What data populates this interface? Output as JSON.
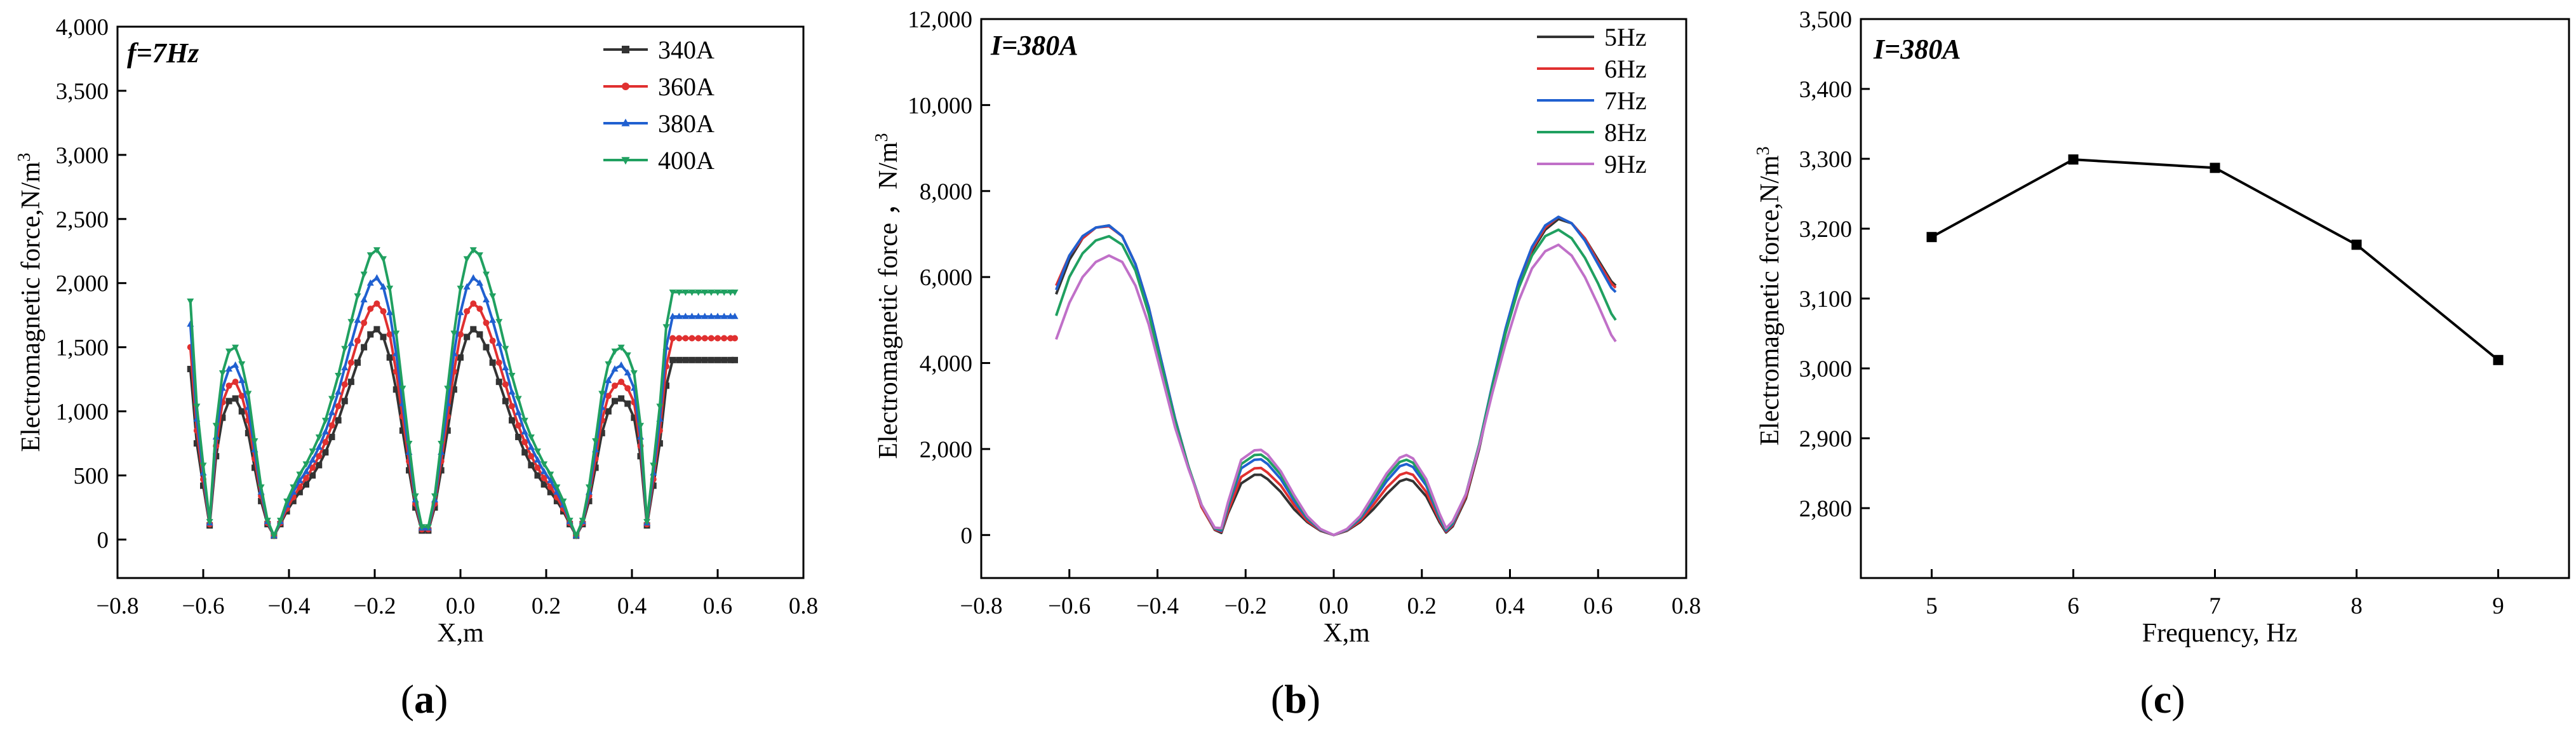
{
  "chart_data": [
    {
      "type": "line",
      "panel": "a",
      "caption": {
        "prefix": "(",
        "letter": "a",
        "suffix": ")"
      },
      "annotation": {
        "var": "f",
        "rest": "=7Hz"
      },
      "xlabel": "X,m",
      "ylabel": "Electromagnetic force,N/m³",
      "xlim": [
        -0.8,
        0.8
      ],
      "ylim": [
        -300,
        4000
      ],
      "xticks": [
        -0.8,
        -0.6,
        -0.4,
        -0.2,
        0.0,
        0.2,
        0.4,
        0.6,
        0.8
      ],
      "xtick_labels": [
        "−0.8",
        "−0.6",
        "−0.4",
        "−0.2",
        "0.0",
        "0.2",
        "0.4",
        "0.6",
        "0.8"
      ],
      "yticks": [
        0,
        500,
        1000,
        1500,
        2000,
        2500,
        3000,
        3500,
        4000
      ],
      "ytick_labels": [
        "0",
        "500",
        "1,000",
        "1,500",
        "2,000",
        "2,500",
        "3,000",
        "3,500",
        "4,000"
      ],
      "legend_position": "top-right",
      "x": [
        -0.63,
        -0.615,
        -0.6,
        -0.585,
        -0.57,
        -0.555,
        -0.54,
        -0.525,
        -0.51,
        -0.495,
        -0.48,
        -0.465,
        -0.45,
        -0.435,
        -0.42,
        -0.405,
        -0.39,
        -0.375,
        -0.36,
        -0.345,
        -0.33,
        -0.315,
        -0.3,
        -0.285,
        -0.27,
        -0.255,
        -0.24,
        -0.225,
        -0.21,
        -0.195,
        -0.18,
        -0.165,
        -0.15,
        -0.135,
        -0.12,
        -0.105,
        -0.09,
        -0.075,
        -0.06,
        -0.045,
        -0.03,
        -0.015,
        0.0,
        0.015,
        0.03,
        0.045,
        0.06,
        0.075,
        0.09,
        0.105,
        0.12,
        0.135,
        0.15,
        0.165,
        0.18,
        0.195,
        0.21,
        0.225,
        0.24,
        0.255,
        0.27,
        0.285,
        0.3,
        0.315,
        0.33,
        0.345,
        0.36,
        0.375,
        0.39,
        0.405,
        0.42,
        0.435,
        0.45,
        0.465,
        0.48,
        0.495,
        0.51,
        0.525,
        0.54,
        0.555,
        0.57,
        0.585,
        0.6,
        0.615,
        0.63,
        0.64
      ],
      "series": [
        {
          "name": "340A",
          "color": "#333333",
          "marker": "square",
          "values": [
            1330,
            750,
            420,
            110,
            650,
            950,
            1080,
            1100,
            1000,
            830,
            560,
            300,
            120,
            30,
            120,
            220,
            300,
            370,
            430,
            500,
            580,
            680,
            800,
            930,
            1080,
            1230,
            1380,
            1500,
            1600,
            1640,
            1580,
            1420,
            1170,
            850,
            540,
            250,
            70,
            70,
            250,
            540,
            850,
            1170,
            1420,
            1580,
            1640,
            1600,
            1500,
            1380,
            1230,
            1080,
            930,
            800,
            680,
            580,
            500,
            430,
            370,
            300,
            220,
            120,
            30,
            120,
            300,
            560,
            830,
            1000,
            1080,
            1100,
            1060,
            950,
            650,
            110,
            420,
            750,
            1200,
            1400,
            1400,
            1400,
            1400,
            1400,
            1400,
            1400,
            1400,
            1400,
            1400,
            1400
          ]
        },
        {
          "name": "360A",
          "color": "#e03030",
          "marker": "circle",
          "values": [
            1500,
            850,
            470,
            120,
            730,
            1070,
            1200,
            1230,
            1120,
            930,
            630,
            340,
            130,
            30,
            130,
            240,
            330,
            410,
            480,
            560,
            650,
            760,
            890,
            1040,
            1210,
            1380,
            1550,
            1690,
            1800,
            1840,
            1780,
            1600,
            1310,
            960,
            610,
            280,
            80,
            80,
            280,
            610,
            960,
            1310,
            1600,
            1780,
            1840,
            1800,
            1690,
            1550,
            1380,
            1210,
            1040,
            890,
            760,
            650,
            560,
            480,
            410,
            330,
            240,
            130,
            30,
            130,
            340,
            630,
            930,
            1120,
            1200,
            1230,
            1180,
            1070,
            730,
            120,
            470,
            850,
            1350,
            1570,
            1570,
            1570,
            1570,
            1570,
            1570,
            1570,
            1570,
            1570,
            1570,
            1570
          ]
        },
        {
          "name": "380A",
          "color": "#2060d0",
          "marker": "triangle",
          "values": [
            1680,
            940,
            520,
            130,
            800,
            1180,
            1330,
            1360,
            1240,
            1030,
            700,
            370,
            140,
            30,
            140,
            270,
            370,
            460,
            530,
            620,
            720,
            840,
            990,
            1150,
            1340,
            1530,
            1710,
            1870,
            2000,
            2040,
            1970,
            1770,
            1450,
            1060,
            680,
            310,
            90,
            90,
            310,
            680,
            1060,
            1450,
            1770,
            1970,
            2040,
            2000,
            1870,
            1710,
            1530,
            1340,
            1150,
            990,
            840,
            720,
            620,
            530,
            460,
            370,
            270,
            140,
            30,
            140,
            370,
            700,
            1030,
            1240,
            1330,
            1360,
            1300,
            1180,
            800,
            130,
            520,
            940,
            1500,
            1740,
            1740,
            1740,
            1740,
            1740,
            1740,
            1740,
            1740,
            1740,
            1740,
            1740
          ]
        },
        {
          "name": "400A",
          "color": "#20a060",
          "marker": "triangle-down",
          "values": [
            1860,
            1040,
            580,
            140,
            890,
            1300,
            1470,
            1500,
            1370,
            1140,
            770,
            410,
            150,
            30,
            150,
            300,
            410,
            510,
            590,
            690,
            800,
            930,
            1100,
            1280,
            1490,
            1700,
            1900,
            2070,
            2220,
            2260,
            2190,
            1960,
            1610,
            1180,
            750,
            340,
            100,
            100,
            340,
            750,
            1180,
            1610,
            1960,
            2190,
            2260,
            2220,
            2070,
            1900,
            1700,
            1490,
            1280,
            1100,
            930,
            800,
            690,
            590,
            510,
            410,
            300,
            150,
            30,
            150,
            410,
            770,
            1140,
            1370,
            1470,
            1500,
            1440,
            1300,
            890,
            140,
            580,
            1040,
            1660,
            1930,
            1930,
            1930,
            1930,
            1930,
            1930,
            1930,
            1930,
            1930,
            1930,
            1930
          ]
        }
      ]
    },
    {
      "type": "line",
      "panel": "b",
      "caption": {
        "prefix": "(",
        "letter": "b",
        "suffix": ")"
      },
      "annotation": {
        "var": "I",
        "rest": "=380A"
      },
      "xlabel": "X,m",
      "ylabel": "Electromagnetic force ，N/m³",
      "xlim": [
        -0.8,
        0.8
      ],
      "ylim": [
        -1000,
        12000
      ],
      "xticks": [
        -0.8,
        -0.6,
        -0.4,
        -0.2,
        0.0,
        0.2,
        0.4,
        0.6,
        0.8
      ],
      "xtick_labels": [
        "−0.8",
        "−0.6",
        "−0.4",
        "−0.2",
        "0.0",
        "0.2",
        "0.4",
        "0.6",
        "0.8"
      ],
      "yticks": [
        0,
        2000,
        4000,
        6000,
        8000,
        10000,
        12000
      ],
      "ytick_labels": [
        "0",
        "2,000",
        "4,000",
        "6,000",
        "8,000",
        "10,000",
        "12,000"
      ],
      "legend_position": "top-right",
      "x": [
        -0.63,
        -0.6,
        -0.57,
        -0.54,
        -0.51,
        -0.48,
        -0.45,
        -0.42,
        -0.39,
        -0.36,
        -0.33,
        -0.3,
        -0.27,
        -0.255,
        -0.24,
        -0.21,
        -0.18,
        -0.165,
        -0.15,
        -0.12,
        -0.09,
        -0.06,
        -0.03,
        0.0,
        0.03,
        0.06,
        0.09,
        0.12,
        0.15,
        0.165,
        0.18,
        0.21,
        0.24,
        0.255,
        0.27,
        0.3,
        0.33,
        0.36,
        0.39,
        0.42,
        0.45,
        0.48,
        0.51,
        0.54,
        0.57,
        0.6,
        0.63,
        0.64
      ],
      "series": [
        {
          "name": "5Hz",
          "color": "#333333",
          "values": [
            5600,
            6400,
            6900,
            7150,
            7200,
            6950,
            6300,
            5300,
            4000,
            2700,
            1600,
            650,
            120,
            50,
            500,
            1200,
            1400,
            1400,
            1300,
            1000,
            600,
            300,
            100,
            0,
            100,
            300,
            600,
            950,
            1250,
            1300,
            1250,
            900,
            300,
            60,
            200,
            850,
            2000,
            3400,
            4700,
            5800,
            6600,
            7100,
            7350,
            7250,
            6900,
            6400,
            5900,
            5800
          ]
        },
        {
          "name": "6Hz",
          "color": "#e03030",
          "values": [
            5800,
            6500,
            6900,
            7150,
            7180,
            6950,
            6300,
            5300,
            4000,
            2700,
            1600,
            650,
            130,
            80,
            550,
            1350,
            1550,
            1560,
            1450,
            1150,
            700,
            330,
            110,
            0,
            110,
            330,
            700,
            1100,
            1400,
            1450,
            1400,
            1000,
            350,
            80,
            230,
            900,
            2050,
            3450,
            4750,
            5850,
            6650,
            7150,
            7400,
            7250,
            6900,
            6350,
            5850,
            5750
          ]
        },
        {
          "name": "7Hz",
          "color": "#2060d0",
          "values": [
            5700,
            6500,
            6950,
            7150,
            7200,
            6950,
            6300,
            5300,
            4000,
            2700,
            1600,
            700,
            150,
            100,
            650,
            1550,
            1750,
            1760,
            1650,
            1300,
            800,
            380,
            120,
            0,
            120,
            380,
            800,
            1250,
            1600,
            1650,
            1580,
            1150,
            400,
            100,
            260,
            950,
            2100,
            3500,
            4800,
            5900,
            6700,
            7200,
            7400,
            7250,
            6850,
            6300,
            5750,
            5650
          ]
        },
        {
          "name": "8Hz",
          "color": "#20a060",
          "values": [
            5100,
            6000,
            6550,
            6850,
            6950,
            6750,
            6150,
            5150,
            3900,
            2650,
            1600,
            700,
            160,
            130,
            700,
            1650,
            1860,
            1870,
            1760,
            1400,
            870,
            410,
            130,
            0,
            130,
            410,
            870,
            1350,
            1700,
            1750,
            1680,
            1230,
            450,
            130,
            290,
            950,
            2100,
            3450,
            4700,
            5750,
            6500,
            6950,
            7100,
            6900,
            6450,
            5850,
            5150,
            5000
          ]
        },
        {
          "name": "9Hz",
          "color": "#c070c8",
          "values": [
            4550,
            5400,
            6000,
            6350,
            6500,
            6350,
            5800,
            4900,
            3700,
            2500,
            1550,
            700,
            170,
            160,
            760,
            1750,
            1970,
            1980,
            1870,
            1480,
            930,
            440,
            140,
            0,
            140,
            440,
            930,
            1430,
            1800,
            1860,
            1780,
            1300,
            500,
            160,
            320,
            950,
            2050,
            3300,
            4450,
            5450,
            6200,
            6600,
            6750,
            6500,
            6000,
            5350,
            4650,
            4500
          ]
        }
      ]
    },
    {
      "type": "line",
      "panel": "c",
      "caption": {
        "prefix": "(",
        "letter": "c",
        "suffix": ")"
      },
      "annotation": {
        "var": "I",
        "rest": "=380A"
      },
      "xlabel": "Frequency, Hz",
      "ylabel": "Electromagnetic force,N/m³",
      "xlim": [
        4.5,
        9.5
      ],
      "ylim": [
        2700,
        3500
      ],
      "xticks": [
        5,
        6,
        7,
        8,
        9
      ],
      "xtick_labels": [
        "5",
        "6",
        "7",
        "8",
        "9"
      ],
      "yticks": [
        2800,
        2900,
        3000,
        3100,
        3200,
        3300,
        3400,
        3500
      ],
      "ytick_labels": [
        "2,800",
        "2,900",
        "3,000",
        "3,100",
        "3,200",
        "3,300",
        "3,400",
        "3,500"
      ],
      "series": [
        {
          "name": "Electromagnetic force",
          "color": "#000000",
          "marker": "square",
          "x": [
            5,
            6,
            7,
            8,
            9
          ],
          "values": [
            3188,
            3299,
            3287,
            3177,
            3012
          ]
        }
      ]
    }
  ]
}
